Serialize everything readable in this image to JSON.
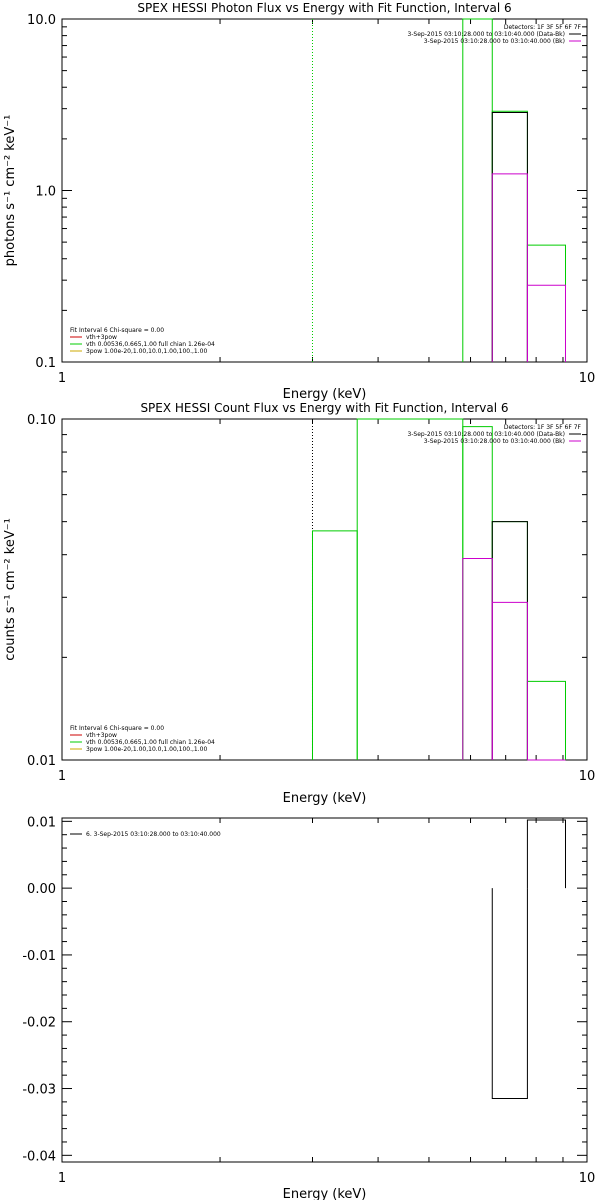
{
  "chart_data": [
    {
      "id": "photon",
      "type": "line",
      "title": "SPEX HESSI Photon Flux vs Energy with Fit Function, Interval 6",
      "xlabel": "Energy (keV)",
      "ylabel": "photons s⁻¹ cm⁻² keV⁻¹",
      "xscale": "log",
      "yscale": "log",
      "xlim": [
        1,
        10
      ],
      "ylim": [
        0.1,
        10
      ],
      "xticks": [
        {
          "v": 1,
          "label": "1"
        },
        {
          "v": 10,
          "label": "10"
        }
      ],
      "yticks": [
        {
          "v": 0.1,
          "label": "0.1"
        },
        {
          "v": 1,
          "label": "1.0"
        },
        {
          "v": 10,
          "label": "10.0"
        }
      ],
      "legend_tr": [
        {
          "text": "Detectors: 1F 3F 5F 6F 7F",
          "color": null
        },
        {
          "text": "3-Sep-2015 03:10:28.000 to 03:10:40.000 (Data-Bk)",
          "color": "#000000"
        },
        {
          "text": "3-Sep-2015 03:10:28.000 to 03:10:40.000 (Bk)",
          "color": "#cc00cc"
        }
      ],
      "legend_bl": [
        {
          "text": "Fit Interval 6   Chi-square = 0.00",
          "color": null
        },
        {
          "text": "vth+3pow",
          "color": "#cc0000"
        },
        {
          "text": "vth 0.00536,0.665,1.00  full chian 1.26e-04",
          "color": "#00cc00"
        },
        {
          "text": "3pow 1.00e-20,1.00,10.0,1.00,100.,1.00",
          "color": "#ccaa00"
        }
      ],
      "vlines": [
        {
          "x": 3.0,
          "y_top": 10,
          "color": "#00cc00",
          "style": "dotted"
        }
      ],
      "series": [
        {
          "color": "#00cc00",
          "steps": [
            {
              "x0": 5.8,
              "x1": 6.6,
              "y": 10
            },
            {
              "x0": 6.6,
              "x1": 7.7,
              "y": 2.9
            },
            {
              "x0": 7.7,
              "x1": 9.1,
              "y": 0.48
            }
          ]
        },
        {
          "color": "#000000",
          "steps": [
            {
              "x0": 6.6,
              "x1": 7.7,
              "y": 2.85
            }
          ]
        },
        {
          "color": "#cc00cc",
          "steps": [
            {
              "x0": 6.6,
              "x1": 7.7,
              "y": 1.25
            },
            {
              "x0": 7.7,
              "x1": 9.1,
              "y": 0.28
            }
          ]
        }
      ]
    },
    {
      "id": "count",
      "type": "line",
      "title": "SPEX HESSI Count Flux vs Energy with Fit Function, Interval 6",
      "xlabel": "Energy (keV)",
      "ylabel": "counts s⁻¹ cm⁻² keV⁻¹",
      "xscale": "log",
      "yscale": "log",
      "xlim": [
        1,
        10
      ],
      "ylim": [
        0.01,
        0.1
      ],
      "xticks": [
        {
          "v": 1,
          "label": "1"
        },
        {
          "v": 10,
          "label": "10"
        }
      ],
      "yticks": [
        {
          "v": 0.01,
          "label": "0.01"
        },
        {
          "v": 0.1,
          "label": "0.10"
        }
      ],
      "legend_tr": [
        {
          "text": "Detectors: 1F 3F 5F 6F 7F",
          "color": null
        },
        {
          "text": "3-Sep-2015 03:10:28.000 to 03:10:40.000 (Data-Bk)",
          "color": "#000000"
        },
        {
          "text": "3-Sep-2015 03:10:28.000 to 03:10:40.000 (Bk)",
          "color": "#cc00cc"
        }
      ],
      "legend_bl": [
        {
          "text": "Fit Interval 6   Chi-square = 0.00",
          "color": null
        },
        {
          "text": "vth+3pow",
          "color": "#cc0000"
        },
        {
          "text": "vth 0.00536,0.665,1.00  full chian 1.26e-04",
          "color": "#00cc00"
        },
        {
          "text": "3pow 1.00e-20,1.00,10.0,1.00,100.,1.00",
          "color": "#ccaa00"
        }
      ],
      "vlines": [
        {
          "x": 3.0,
          "y_top": 0.1,
          "color": "#000000",
          "style": "dotted"
        }
      ],
      "series": [
        {
          "color": "#00cc00",
          "steps": [
            {
              "x0": 3.0,
              "x1": 3.65,
              "y": 0.047
            },
            {
              "x0": 3.65,
              "x1": 5.8,
              "y": 0.1
            },
            {
              "x0": 5.8,
              "x1": 6.6,
              "y": 0.095
            },
            {
              "x0": 6.6,
              "x1": 7.7,
              "y": 0.05
            },
            {
              "x0": 7.7,
              "x1": 9.1,
              "y": 0.017
            }
          ]
        },
        {
          "color": "#000000",
          "steps": [
            {
              "x0": 6.6,
              "x1": 7.7,
              "y": 0.05
            }
          ]
        },
        {
          "color": "#cc00cc",
          "steps": [
            {
              "x0": 5.8,
              "x1": 6.6,
              "y": 0.039
            },
            {
              "x0": 6.6,
              "x1": 7.7,
              "y": 0.029
            },
            {
              "x0": 7.7,
              "x1": 9.1,
              "y": 0.01
            }
          ]
        }
      ]
    },
    {
      "id": "resid",
      "type": "line",
      "title": "",
      "xlabel": "Energy (keV)",
      "ylabel": "",
      "xscale": "log",
      "yscale": "linear",
      "xlim": [
        1,
        10
      ],
      "ylim": [
        -0.041,
        0.0105
      ],
      "xticks": [
        {
          "v": 1,
          "label": "1"
        },
        {
          "v": 10,
          "label": "10"
        }
      ],
      "yticks": [
        {
          "v": 0.01,
          "label": "0.01"
        },
        {
          "v": 0.0,
          "label": "0.00"
        },
        {
          "v": -0.01,
          "label": "-0.01"
        },
        {
          "v": -0.02,
          "label": "-0.02"
        },
        {
          "v": -0.03,
          "label": "-0.03"
        },
        {
          "v": -0.04,
          "label": "-0.04"
        }
      ],
      "legend_tl": [
        {
          "text": "6.  3-Sep-2015 03:10:28.000 to 03:10:40.000",
          "color": "#000000"
        }
      ],
      "series": [
        {
          "color": "#000000",
          "steps": [
            {
              "x0": 6.6,
              "x1": 7.7,
              "y": -0.0315
            },
            {
              "x0": 7.7,
              "x1": 9.1,
              "y": 0.0102
            }
          ]
        }
      ]
    }
  ]
}
